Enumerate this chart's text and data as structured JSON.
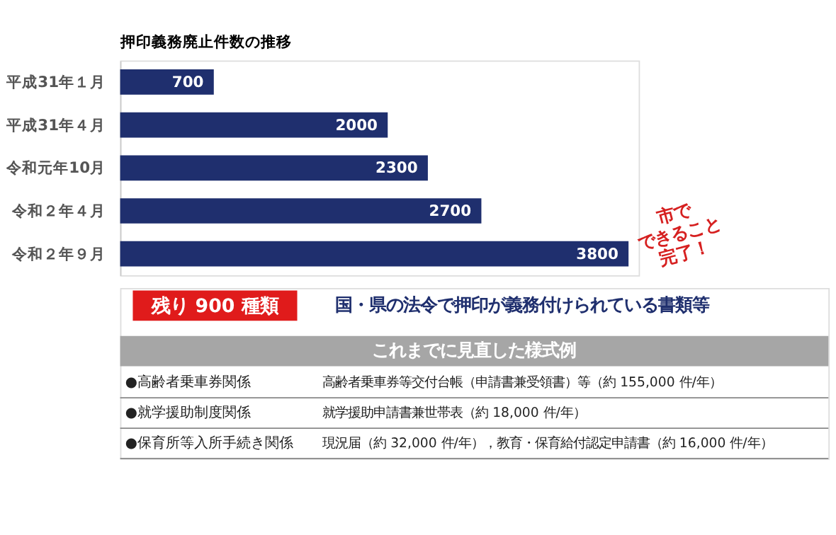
{
  "chart_data": {
    "type": "bar",
    "orientation": "horizontal",
    "title": "押印義務廃止件数の推移",
    "categories": [
      "平成31年１月",
      "平成31年４月",
      "令和元年10月",
      "令和２年４月",
      "令和２年９月"
    ],
    "values": [
      700,
      2000,
      2300,
      2700,
      3800
    ],
    "color": "#1f2f6e",
    "data_labels": true,
    "annotations": [
      "市で\nできること\n完了！",
      "残り 900 種類",
      "国・県の法令で押印が義務付けられている書類等",
      "これまでに見直した様式例",
      "●高齢者乗車券関係",
      "高齢者乗車券等交付台帳（申請書兼受領書）等（約 155,000 件/年）",
      "●就学援助制度関係",
      "就学援助申請書兼世帯表（約 18,000 件/年）",
      "●保育所等入所手続き関係",
      "現況届（約 32,000 件/年），教育・保育給付認定申請書（約 16,000 件/年）"
    ]
  }
}
